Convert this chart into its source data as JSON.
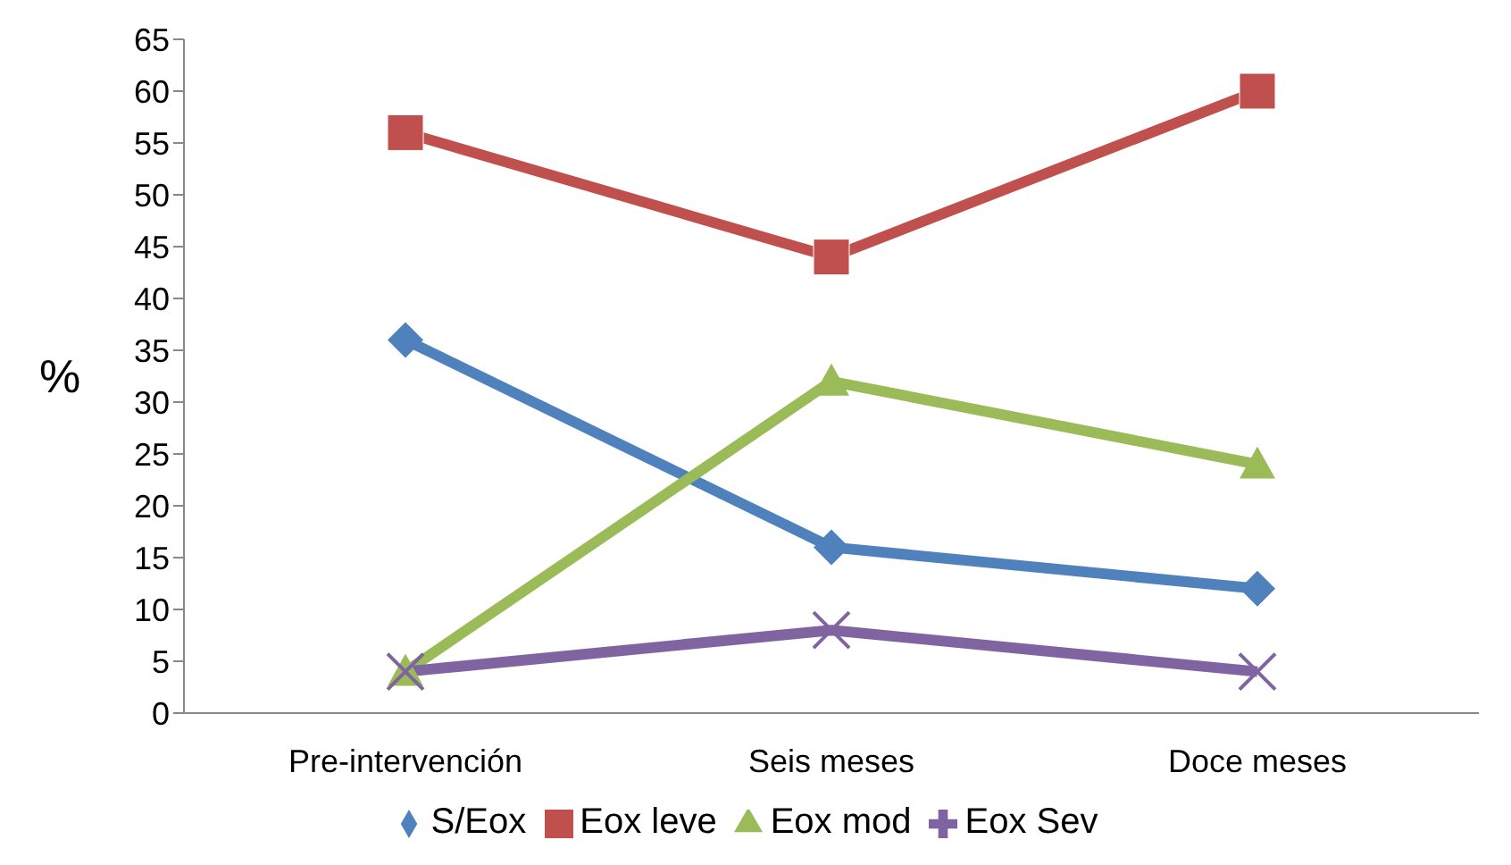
{
  "chart_data": {
    "type": "line",
    "ylabel": "%",
    "categories": [
      "Pre-intervención",
      "Seis meses",
      "Doce meses"
    ],
    "series": [
      {
        "name": "S/Eox",
        "color": "#4f81bd",
        "marker": "diamond",
        "values": [
          36,
          16,
          12
        ]
      },
      {
        "name": "Eox leve",
        "color": "#c0504d",
        "marker": "square",
        "values": [
          56,
          44,
          60
        ]
      },
      {
        "name": "Eox mod",
        "color": "#9bbb59",
        "marker": "triangle",
        "values": [
          4,
          32,
          24
        ]
      },
      {
        "name": "Eox Sev",
        "color": "#8064a2",
        "marker": "cross",
        "values": [
          4,
          8,
          4
        ]
      }
    ],
    "ylim": [
      0,
      65
    ],
    "yticks": [
      0,
      5,
      10,
      15,
      20,
      25,
      30,
      35,
      40,
      45,
      50,
      55,
      60,
      65
    ],
    "grid": false,
    "legend": "bottom",
    "line_style": "solid"
  }
}
